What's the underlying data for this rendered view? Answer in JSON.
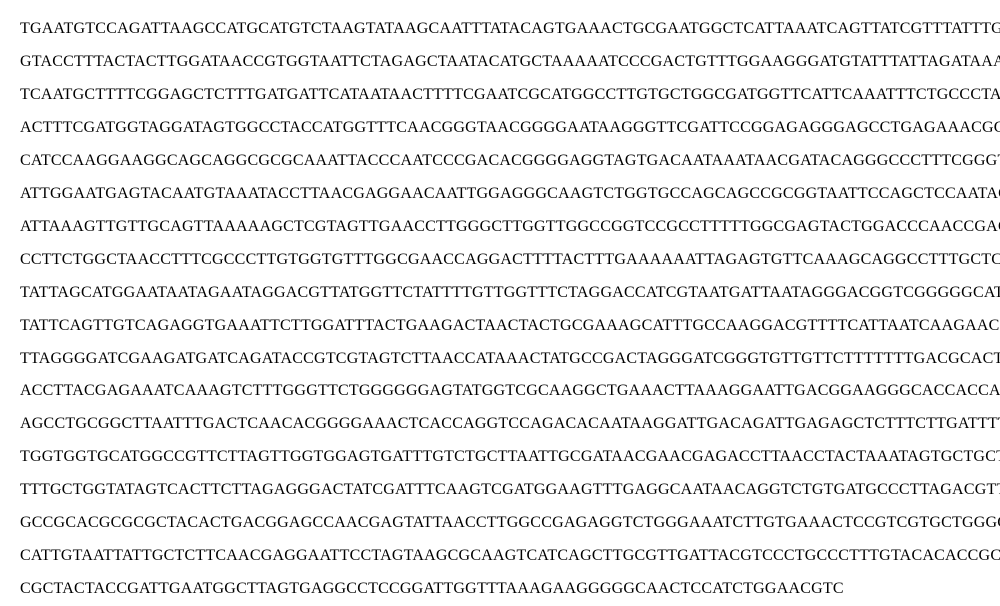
{
  "sequence": {
    "type": "dna-sequence-document",
    "font_family": "Times New Roman",
    "font_size": 16,
    "text_color": "#000000",
    "background_color": "#ffffff",
    "line_height": 2.06,
    "letter_spacing": 0.22,
    "lines": [
      "TGAATGTCCAGATTAAGCCATGCATGTCTAAGTATAAGCAATTTATACAGTGAAACTGCGAATGGCTCATTAAATCAGTTATCGTTTATTTGATA",
      "GTACCTTTACTACTTGGATAACCGTGGTAATTCTAGAGCTAATACATGCTAAAAATCCCGACTGTTTGGAAGGGATGTATTTATTAGATAAAAAA",
      "TCAATGCTTTTCGGAGCTCTTTGATGATTCATAATAACTTTTCGAATCGCATGGCCTTGTGCTGGCGATGGTTCATTCAAATTTCTGCCCTATCA",
      "ACTTTCGATGGTAGGATAGTGGCCTACCATGGTTTCAACGGGTAACGGGGAATAAGGGTTCGATTCCGGAGAGGGAGCCTGAGAAACGGCTACCA",
      "CATCCAAGGAAGGCAGCAGGCGCGCAAATTACCCAATCCCGACACGGGGAGGTAGTGACAATAAATAACGATACAGGGCCCTTTCGGGTCTTGTA",
      "ATTGGAATGAGTACAATGTAAATACCTTAACGAGGAACAATTGGAGGGCAAGTCTGGTGCCAGCAGCCGCGGTAATTCCAGCTCCAATAGCGTAT",
      "ATTAAAGTTGTTGCAGTTAAAAAGCTCGTAGTTGAACCTTGGGCTTGGTTGGCCGGTCCGCCTTTTTGGCGAGTACTGGACCCAACCGAGCCTTT",
      "CCTTCTGGCTAACCTTTCGCCCTTGTGGTGTTTGGCGAACCAGGACTTTTACTTTGAAAAAATTAGAGTGTTCAAAGCAGGCCTTTGCTCGAATA",
      "TATTAGCATGGAATAATAGAATAGGACGTTATGGTTCTATTTTGTTGGTTTCTAGGACCATCGTAATGATTAATAGGGACGGTCGGGGGCATCAG",
      "TATTCAGTTGTCAGAGGTGAAATTCTTGGATTTACTGAAGACTAACTACTGCGAAAGCATTTGCCAAGGACGTTTTCATTAATCAAGAACGAAAG",
      "TTAGGGGATCGAAGATGATCAGATACCGTCGTAGTCTTAACCATAAACTATGCCGACTAGGGATCGGGTGTTGTTCTTTTTTTGACGCACTCGGC",
      "ACCTTACGAGAAATCAAAGTCTTTGGGTTCTGGGGGGAGTATGGTCGCAAGGCTGAAACTTAAAGGAATTGACGGAAGGGCACCACCAGGAGTGG",
      "AGCCTGCGGCTTAATTTGACTCAACACGGGGAAACTCACCAGGTCCAGACACAATAAGGATTGACAGATTGAGAGCTCTTTCTTGATTTTGTGGG",
      "TGGTGGTGCATGGCCGTTCTTAGTTGGTGGAGTGATTTGTCTGCTTAATTGCGATAACGAACGAGACCTTAACCTACTAAATAGTGCTGCTAGCT",
      "TTTGCTGGTATAGTCACTTCTTAGAGGGACTATCGATTTCAAGTCGATGGAAGTTTGAGGCAATAACAGGTCTGTGATGCCCTTAGACGTTCTGG",
      "GCCGCACGCGCGCTACACTGACGGAGCCAACGAGTATTAACCTTGGCCGAGAGGTCTGGGAAATCTTGTGAAACTCCGTCGTGCTGGGGATAGAG",
      "CATTGTAATTATTGCTCTTCAACGAGGAATTCCTAGTAAGCGCAAGTCATCAGCTTGCGTTGATTACGTCCCTGCCCTTTGTACACACCGCCCGT",
      "CGCTACTACCGATTGAATGGCTTAGTGAGGCCTCCGGATTGGTTTAAAGAAGGGGGCAACTCCATCTGGAACGTC"
    ]
  }
}
